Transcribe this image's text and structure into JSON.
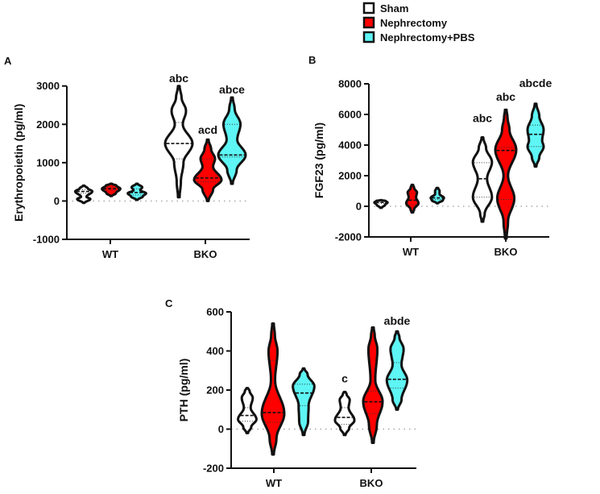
{
  "legend": {
    "items": [
      {
        "label": "Sham",
        "color": "#ffffff"
      },
      {
        "label": "Nephrectomy",
        "color": "#ff0000"
      },
      {
        "label": "Nephrectomy+PBS",
        "color": "#5ef5f5"
      }
    ]
  },
  "chart_data": [
    {
      "type": "violin",
      "panel_label": "A",
      "ylabel": "Erythropoietin (pg/ml)",
      "ylim": [
        -1000,
        3000
      ],
      "yticks": [
        -1000,
        0,
        1000,
        2000,
        3000
      ],
      "categories": [
        "WT",
        "BKO"
      ],
      "violins": [
        {
          "category": "WT",
          "series": "Sham",
          "min": -50,
          "max": 400,
          "median": 250,
          "q1": 200,
          "q3": 300,
          "density": [
            [
              50,
              0.45
            ],
            [
              110,
              0.15
            ],
            [
              250,
              0.6
            ],
            [
              330,
              0.25
            ]
          ]
        },
        {
          "category": "WT",
          "series": "Nephrectomy",
          "min": 130,
          "max": 450,
          "median": 320,
          "q1": 280,
          "q3": 360,
          "density": [
            [
              200,
              0.3
            ],
            [
              320,
              0.65
            ],
            [
              400,
              0.35
            ]
          ]
        },
        {
          "category": "WT",
          "series": "Nephrectomy+PBS",
          "min": 30,
          "max": 450,
          "median": 220,
          "q1": 160,
          "q3": 320,
          "density": [
            [
              120,
              0.4
            ],
            [
              200,
              0.65
            ],
            [
              280,
              0.2
            ],
            [
              360,
              0.35
            ]
          ]
        },
        {
          "category": "BKO",
          "series": "Sham",
          "min": 100,
          "max": 3000,
          "median": 1500,
          "q1": 1100,
          "q3": 2050,
          "density": [
            [
              500,
              0.1
            ],
            [
              1000,
              0.3
            ],
            [
              1500,
              1
            ],
            [
              2000,
              0.25
            ],
            [
              2350,
              0.5
            ],
            [
              2700,
              0.15
            ]
          ]
        },
        {
          "category": "BKO",
          "series": "Nephrectomy",
          "min": 0,
          "max": 1600,
          "median": 600,
          "q1": 500,
          "q3": 1100,
          "density": [
            [
              300,
              0.35
            ],
            [
              550,
              1
            ],
            [
              900,
              0.35
            ],
            [
              1100,
              0.5
            ],
            [
              1350,
              0.2
            ]
          ]
        },
        {
          "category": "BKO",
          "series": "Nephrectomy+PBS",
          "min": 450,
          "max": 2700,
          "median": 1200,
          "q1": 1150,
          "q3": 2000,
          "density": [
            [
              800,
              0.3
            ],
            [
              1200,
              1
            ],
            [
              1600,
              0.35
            ],
            [
              2000,
              0.6
            ],
            [
              2400,
              0.15
            ]
          ]
        }
      ],
      "annotations": [
        {
          "category": "BKO",
          "series": "Sham",
          "text": "abc",
          "value": 3100
        },
        {
          "category": "BKO",
          "series": "Nephrectomy",
          "text": "acd",
          "value": 1750
        },
        {
          "category": "BKO",
          "series": "Nephrectomy+PBS",
          "text": "abce",
          "value": 2800
        }
      ]
    },
    {
      "type": "violin",
      "panel_label": "B",
      "ylabel": "FGF23  (pg/ml)",
      "ylim": [
        -2000,
        8000
      ],
      "yticks": [
        -2000,
        0,
        2000,
        4000,
        6000,
        8000
      ],
      "categories": [
        "WT",
        "BKO"
      ],
      "violins": [
        {
          "category": "WT",
          "series": "Sham",
          "min": -100,
          "max": 400,
          "median": 250,
          "q1": 200,
          "q3": 300,
          "density": [
            [
              100,
              0.35
            ],
            [
              250,
              0.6
            ],
            [
              350,
              0.4
            ]
          ]
        },
        {
          "category": "WT",
          "series": "Nephrectomy",
          "min": -400,
          "max": 1400,
          "median": 400,
          "q1": 100,
          "q3": 850,
          "density": [
            [
              -200,
              0.1
            ],
            [
              200,
              0.55
            ],
            [
              600,
              0.3
            ],
            [
              900,
              0.4
            ],
            [
              1200,
              0.1
            ]
          ]
        },
        {
          "category": "WT",
          "series": "Nephrectomy+PBS",
          "min": 200,
          "max": 1200,
          "median": 550,
          "q1": 450,
          "q3": 900,
          "density": [
            [
              400,
              0.5
            ],
            [
              550,
              0.6
            ],
            [
              800,
              0.15
            ],
            [
              1000,
              0.15
            ]
          ]
        },
        {
          "category": "BKO",
          "series": "Sham",
          "min": -1000,
          "max": 4500,
          "median": 1800,
          "q1": 600,
          "q3": 2850,
          "density": [
            [
              -500,
              0.15
            ],
            [
              600,
              0.9
            ],
            [
              1800,
              0.4
            ],
            [
              2900,
              0.9
            ],
            [
              3800,
              0.3
            ]
          ]
        },
        {
          "category": "BKO",
          "series": "Nephrectomy",
          "min": -2100,
          "max": 6300,
          "median": 3650,
          "q1": 450,
          "q3": 3850,
          "density": [
            [
              -1000,
              0.15
            ],
            [
              500,
              0.8
            ],
            [
              2000,
              0.15
            ],
            [
              3700,
              1
            ],
            [
              5000,
              0.3
            ],
            [
              5800,
              0.1
            ]
          ]
        },
        {
          "category": "BKO",
          "series": "Nephrectomy+PBS",
          "min": 2600,
          "max": 6700,
          "median": 4700,
          "q1": 3900,
          "q3": 5300,
          "density": [
            [
              3200,
              0.3
            ],
            [
              3900,
              0.75
            ],
            [
              4300,
              0.6
            ],
            [
              5000,
              0.75
            ],
            [
              5900,
              0.3
            ]
          ]
        }
      ],
      "annotations": [
        {
          "category": "BKO",
          "series": "Sham",
          "text": "abc",
          "value": 5500
        },
        {
          "category": "BKO",
          "series": "Nephrectomy",
          "text": "abc",
          "value": 6900
        },
        {
          "category": "BKO",
          "series": "Nephrectomy+PBS",
          "text": "abcde",
          "value": 7800
        }
      ]
    },
    {
      "type": "violin",
      "panel_label": "C",
      "ylabel": "PTH (pg/ml)",
      "ylim": [
        -200,
        600
      ],
      "yticks": [
        -200,
        0,
        200,
        400,
        600
      ],
      "categories": [
        "WT",
        "BKO"
      ],
      "violins": [
        {
          "category": "WT",
          "series": "Sham",
          "min": -20,
          "max": 210,
          "median": 70,
          "q1": 40,
          "q3": 110,
          "density": [
            [
              10,
              0.3
            ],
            [
              50,
              0.8
            ],
            [
              110,
              0.25
            ],
            [
              160,
              0.45
            ],
            [
              195,
              0.15
            ]
          ]
        },
        {
          "category": "WT",
          "series": "Nephrectomy",
          "min": -130,
          "max": 540,
          "median": 85,
          "q1": 35,
          "q3": 350,
          "density": [
            [
              -50,
              0.25
            ],
            [
              80,
              1
            ],
            [
              250,
              0.12
            ],
            [
              400,
              0.35
            ],
            [
              480,
              0.1
            ]
          ]
        },
        {
          "category": "WT",
          "series": "Nephrectomy+PBS",
          "min": -30,
          "max": 310,
          "median": 185,
          "q1": 120,
          "q3": 230,
          "density": [
            [
              40,
              0.35
            ],
            [
              120,
              0.4
            ],
            [
              220,
              0.95
            ],
            [
              280,
              0.3
            ]
          ]
        },
        {
          "category": "BKO",
          "series": "Sham",
          "min": -30,
          "max": 190,
          "median": 60,
          "q1": 25,
          "q3": 110,
          "density": [
            [
              5,
              0.35
            ],
            [
              45,
              0.85
            ],
            [
              110,
              0.3
            ],
            [
              150,
              0.4
            ],
            [
              180,
              0.1
            ]
          ]
        },
        {
          "category": "BKO",
          "series": "Nephrectomy",
          "min": -70,
          "max": 520,
          "median": 140,
          "q1": 80,
          "q3": 195,
          "density": [
            [
              20,
              0.3
            ],
            [
              140,
              0.85
            ],
            [
              250,
              0.15
            ],
            [
              410,
              0.35
            ],
            [
              480,
              0.1
            ]
          ]
        },
        {
          "category": "BKO",
          "series": "Nephrectomy+PBS",
          "min": 100,
          "max": 500,
          "median": 255,
          "q1": 210,
          "q3": 340,
          "density": [
            [
              150,
              0.35
            ],
            [
              250,
              0.9
            ],
            [
              330,
              0.35
            ],
            [
              410,
              0.55
            ],
            [
              470,
              0.15
            ]
          ]
        }
      ],
      "annotations": [
        {
          "category": "BKO",
          "series": "Sham",
          "text": "c",
          "value": 240
        },
        {
          "category": "BKO",
          "series": "Nephrectomy+PBS",
          "text": "abde",
          "value": 535
        }
      ]
    }
  ]
}
